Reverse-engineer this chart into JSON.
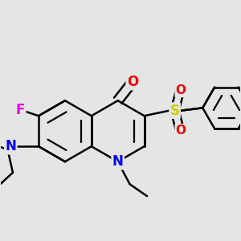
{
  "background_color": "#e5e5e5",
  "bond_color": "#000000",
  "bond_width": 1.8,
  "atom_colors": {
    "F": "#dd00dd",
    "N": "#0000ee",
    "O": "#ee0000",
    "S": "#cccc00",
    "C": "#000000"
  },
  "font_size_atom": 12,
  "font_size_small": 10
}
